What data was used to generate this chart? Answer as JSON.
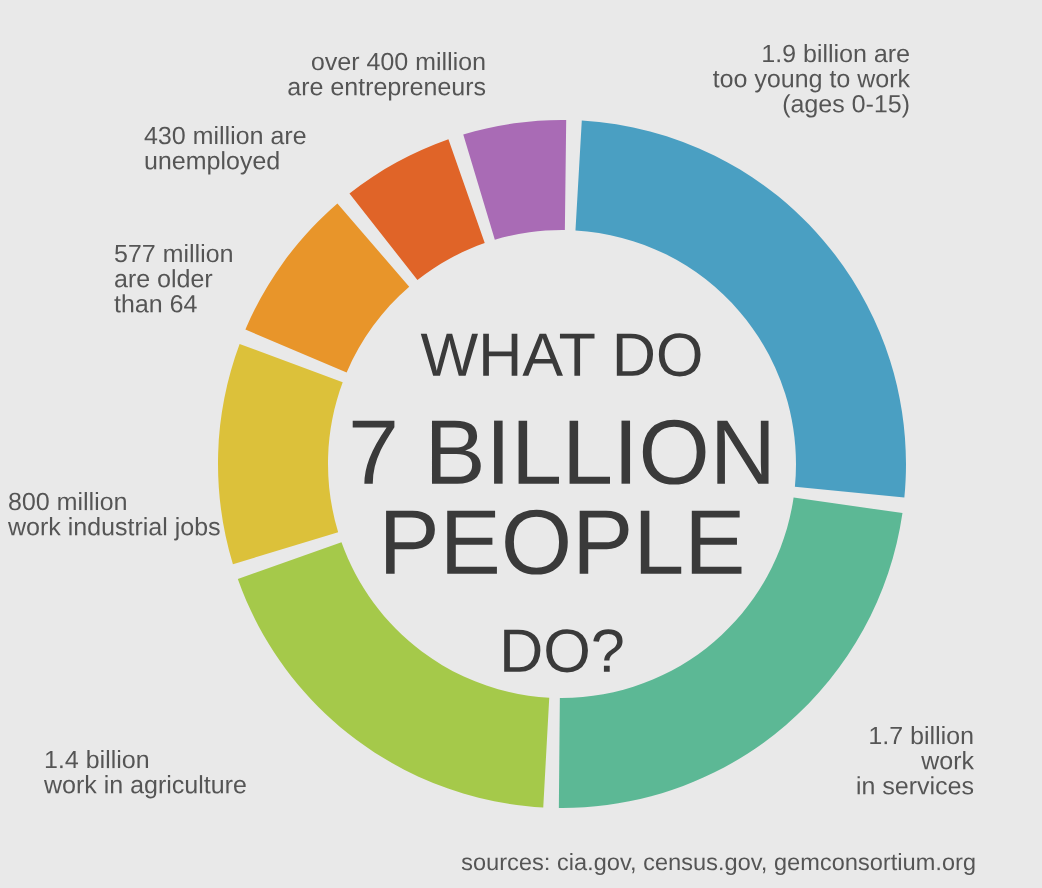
{
  "chart_data": {
    "type": "donut",
    "title": "WHAT DO\n7 BILLION\nPEOPLE\nDO?",
    "categories": [
      "1.9 billion are\ntoo young to work\n(ages 0-15)",
      "1.7 billion\nwork\nin services",
      "1.4 billion\nwork in agriculture",
      "800 million\nwork industrial jobs",
      "577 million\nare older\nthan 64",
      "430 million are\nunemployed",
      "over 400 million\nare entrepreneurs"
    ],
    "values": [
      1900,
      1700,
      1400,
      800,
      577,
      430,
      400
    ],
    "colors": [
      "#4a9fc2",
      "#5cb895",
      "#a5c94a",
      "#dcc13a",
      "#e8952a",
      "#e06428",
      "#a96bb5"
    ],
    "annotations": [
      "sources: cia.gov, census.gov, gemconsortium.org"
    ]
  }
}
